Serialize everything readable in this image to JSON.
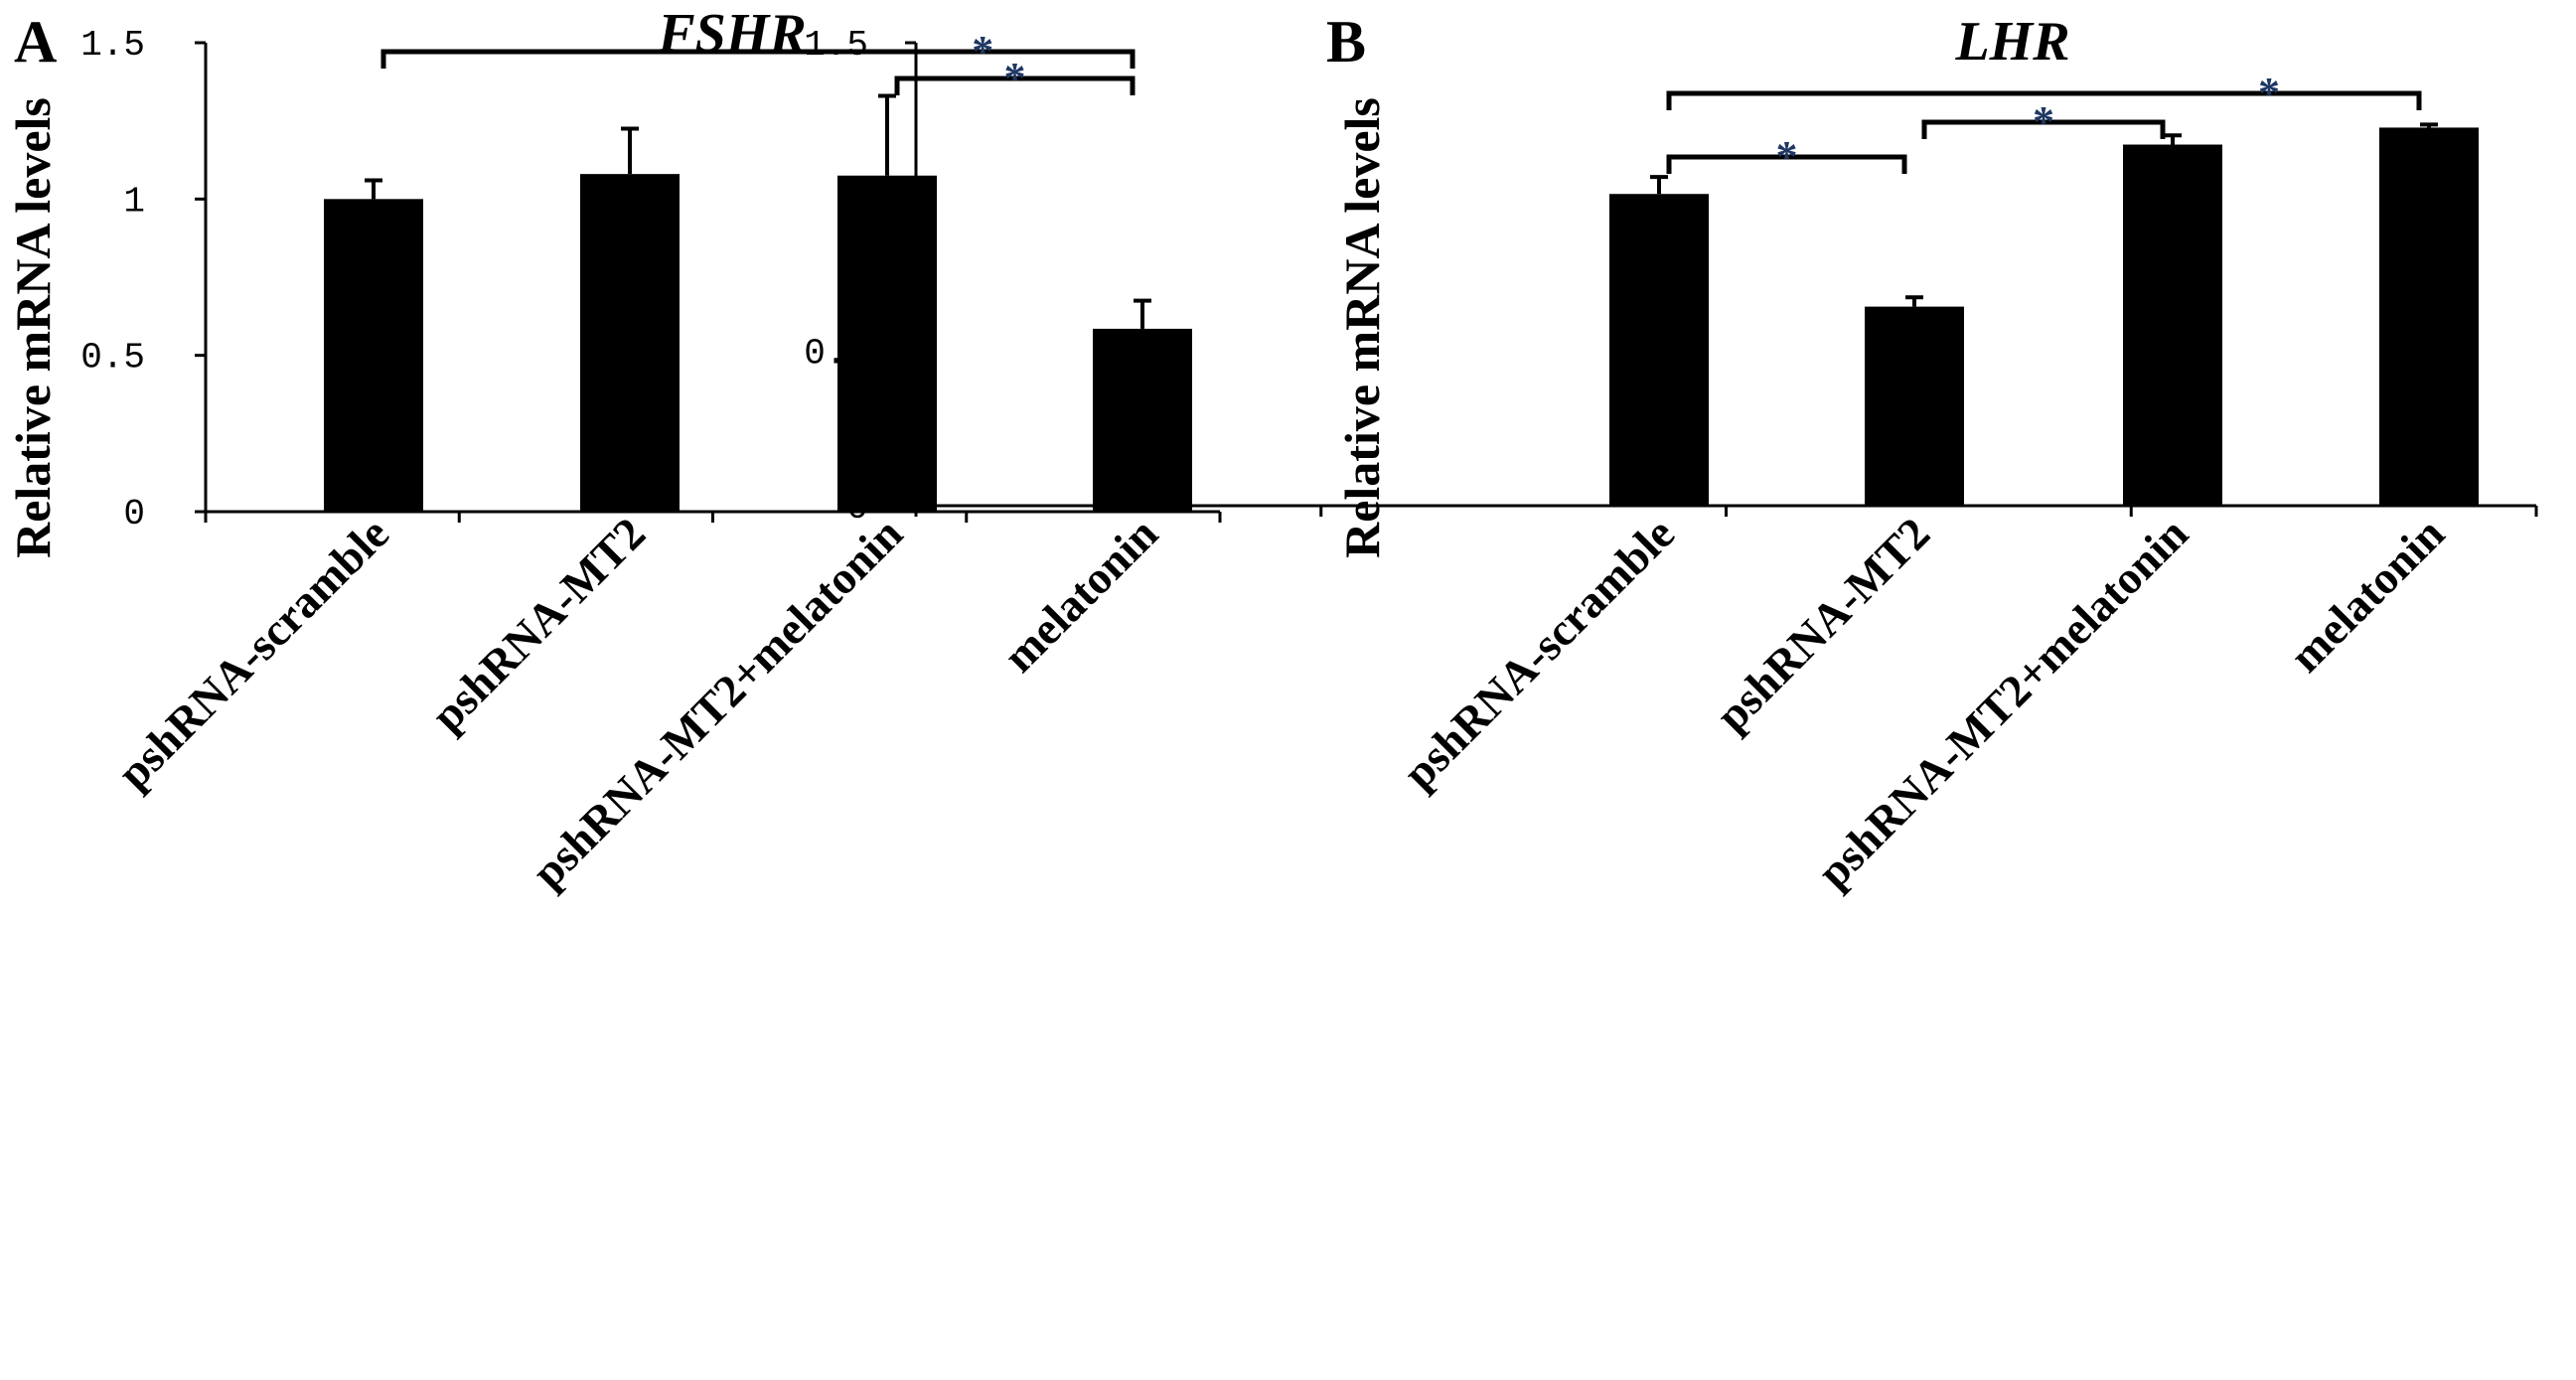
{
  "panels": [
    {
      "letter": "A"
    },
    {
      "letter": "B"
    }
  ],
  "chart_data": [
    {
      "type": "bar",
      "title": "FSHR",
      "ylabel": "Relative mRNA levels",
      "xlabel": "",
      "categories": [
        "pshRNA-scramble",
        "pshRNA-MT2",
        "pshRNA-MT2+melatonin",
        "melatonin"
      ],
      "values": [
        1.0,
        1.08,
        1.075,
        0.585
      ],
      "errors": [
        0.06,
        0.145,
        0.255,
        0.09
      ],
      "ylim": [
        0,
        1.5
      ],
      "yticks": [
        0,
        0.5,
        1,
        1.5
      ],
      "ytick_labels": [
        "0",
        "0.5",
        "1",
        "1.5"
      ],
      "grid": false,
      "bar_color": "#000000",
      "significance": [
        {
          "from": 0,
          "to": 3,
          "label": "*",
          "label_color": "#1f3864"
        },
        {
          "from": 2,
          "to": 3,
          "label": "*",
          "label_color": "#1f3864"
        }
      ]
    },
    {
      "type": "bar",
      "title": "LHR",
      "ylabel": "Relative mRNA levels",
      "xlabel": "",
      "categories": [
        "pshRNA-scramble",
        "pshRNA-MT2",
        "pshRNA-MT2+melatonin",
        "melatonin"
      ],
      "values": [
        1.01,
        0.645,
        1.17,
        1.225
      ],
      "errors": [
        0.055,
        0.03,
        0.03,
        0.01
      ],
      "ylim": [
        0,
        1.5
      ],
      "yticks": [
        0,
        0.5,
        1,
        1.5
      ],
      "ytick_labels": [
        "0",
        "0.5",
        "1",
        "1.5"
      ],
      "grid": false,
      "bar_color": "#000000",
      "significance": [
        {
          "from": 0,
          "to": 3,
          "label": "*",
          "label_color": "#1f3864"
        },
        {
          "from": 0,
          "to": 1,
          "label": "*",
          "label_color": "#1f3864"
        },
        {
          "from": 1,
          "to": 2,
          "label": "*",
          "label_color": "#1f3864"
        }
      ]
    }
  ]
}
